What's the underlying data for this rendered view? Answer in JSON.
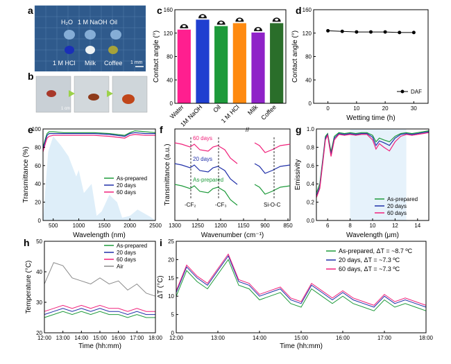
{
  "panels": {
    "a": {
      "letter": "a",
      "row1": [
        "H₂O",
        "1 M NaOH",
        "Oil"
      ],
      "row2": [
        "1 M HCl",
        "Milk",
        "Coffee"
      ],
      "scale": "1 mm",
      "colors": {
        "bg": "#2f5a8c",
        "drop_blue": "#1a2fb8",
        "drop_milk": "#eef2f4",
        "drop_coffee": "#a6a23a"
      }
    },
    "b": {
      "letter": "b",
      "scale": "1 cm"
    }
  },
  "chart_data": [
    {
      "id": "c",
      "type": "bar",
      "categories": [
        "Water",
        "1M NaOH",
        "Oil",
        "1 M HCl",
        "Milk",
        "Coffee"
      ],
      "values": [
        126,
        143,
        132,
        137,
        121,
        137
      ],
      "colors": [
        "#ff1f8f",
        "#1f3fd0",
        "#1d9a3a",
        "#ff8a10",
        "#8f22c8",
        "#2a6e2a"
      ],
      "ylabel": "Contact angle (°)",
      "ylim": [
        0,
        160
      ],
      "yticks": [
        "0",
        "40",
        "80",
        "120",
        "160"
      ]
    },
    {
      "id": "d",
      "type": "line",
      "x": [
        0,
        5,
        10,
        15,
        20,
        25,
        30
      ],
      "y": [
        124,
        123,
        122,
        122,
        122,
        121,
        121
      ],
      "series_name": "DAF",
      "xlabel": "Wetting time (h)",
      "ylabel": "Contact angle (°)",
      "xlim": [
        -5,
        35
      ],
      "ylim": [
        0,
        160
      ],
      "xticks": [
        "0",
        "10",
        "20",
        "30"
      ],
      "yticks": [
        "0",
        "40",
        "80",
        "120",
        "160"
      ]
    },
    {
      "id": "e",
      "type": "line",
      "xlabel": "Wavelength (nm)",
      "ylabel": "Transmittance (%)",
      "xlim": [
        300,
        2500
      ],
      "ylim": [
        0,
        100
      ],
      "xticks": [
        "500",
        "1000",
        "1500",
        "2000",
        "2500"
      ],
      "yticks": [
        "0",
        "20",
        "40",
        "60",
        "80",
        "100"
      ],
      "series": [
        {
          "name": "As-prepared",
          "color": "#1d9a3a",
          "x": [
            300,
            350,
            380,
            420,
            500,
            700,
            1000,
            1300,
            1600,
            1900,
            2000,
            2100,
            2300,
            2500
          ],
          "y": [
            80,
            90,
            95,
            97,
            97,
            96,
            96,
            96,
            95,
            93,
            96,
            98,
            97,
            96
          ]
        },
        {
          "name": "20 days",
          "color": "#1f2fa8",
          "x": [
            300,
            350,
            380,
            420,
            500,
            700,
            1000,
            1300,
            1600,
            1900,
            2000,
            2100,
            2300,
            2500
          ],
          "y": [
            78,
            88,
            93,
            95,
            95,
            95,
            95,
            95,
            94,
            92,
            95,
            96,
            95,
            95
          ]
        },
        {
          "name": "60 days",
          "color": "#f0207a",
          "x": [
            300,
            350,
            380,
            420,
            500,
            700,
            1000,
            1300,
            1600,
            1900,
            2000,
            2100,
            2300,
            2500
          ],
          "y": [
            75,
            85,
            90,
            92,
            93,
            93,
            93,
            93,
            92,
            90,
            93,
            94,
            93,
            93
          ]
        }
      ]
    },
    {
      "id": "f",
      "type": "line",
      "xlabel": "Wavenumber (cm⁻¹)",
      "ylabel": "Transmittance (a.u.)",
      "xticks": [
        "1300",
        "1250",
        "1200",
        "1150",
        "900",
        "850"
      ],
      "annotations": [
        "-CF₂",
        "-CF₃",
        "Si-O-C"
      ],
      "series": [
        {
          "name": "60 days",
          "color": "#f0207a"
        },
        {
          "name": "20 days",
          "color": "#1f2fa8"
        },
        {
          "name": "As-prepared",
          "color": "#1d9a3a"
        }
      ]
    },
    {
      "id": "g",
      "type": "line",
      "xlabel": "Wavelength (μm)",
      "ylabel": "Emissivity",
      "xlim": [
        5,
        15
      ],
      "ylim": [
        0,
        1.0
      ],
      "xticks": [
        "6",
        "8",
        "10",
        "12",
        "14"
      ],
      "yticks": [
        "0.0",
        "0.2",
        "0.4",
        "0.6",
        "0.8",
        "1.0"
      ],
      "series": [
        {
          "name": "As-prepared",
          "color": "#1d9a3a",
          "x": [
            5,
            5.3,
            5.6,
            5.8,
            6.0,
            6.3,
            6.6,
            7,
            7.5,
            8,
            8.5,
            9,
            9.5,
            10,
            10.3,
            10.6,
            11,
            11.5,
            12,
            12.5,
            13,
            13.5,
            14,
            14.5,
            15
          ],
          "y": [
            0.3,
            0.4,
            0.7,
            0.92,
            0.95,
            0.75,
            0.92,
            0.96,
            0.95,
            0.96,
            0.95,
            0.96,
            0.96,
            0.93,
            0.86,
            0.9,
            0.88,
            0.86,
            0.92,
            0.95,
            0.96,
            0.95,
            0.96,
            0.97,
            0.98
          ]
        },
        {
          "name": "20 days",
          "color": "#1f2fa8",
          "x": [
            5,
            5.3,
            5.6,
            5.8,
            6.0,
            6.3,
            6.6,
            7,
            7.5,
            8,
            8.5,
            9,
            9.5,
            10,
            10.3,
            10.6,
            11,
            11.5,
            12,
            12.5,
            13,
            13.5,
            14,
            14.5,
            15
          ],
          "y": [
            0.27,
            0.37,
            0.68,
            0.9,
            0.94,
            0.72,
            0.9,
            0.95,
            0.94,
            0.95,
            0.94,
            0.95,
            0.95,
            0.91,
            0.82,
            0.87,
            0.85,
            0.82,
            0.9,
            0.94,
            0.95,
            0.94,
            0.95,
            0.96,
            0.97
          ]
        },
        {
          "name": "60 days",
          "color": "#f0207a",
          "x": [
            5,
            5.3,
            5.6,
            5.8,
            6.0,
            6.3,
            6.6,
            7,
            7.5,
            8,
            8.5,
            9,
            9.5,
            10,
            10.3,
            10.6,
            11,
            11.5,
            12,
            12.5,
            13,
            13.5,
            14,
            14.5,
            15
          ],
          "y": [
            0.25,
            0.35,
            0.66,
            0.88,
            0.93,
            0.7,
            0.88,
            0.94,
            0.93,
            0.94,
            0.93,
            0.94,
            0.94,
            0.88,
            0.78,
            0.84,
            0.8,
            0.76,
            0.86,
            0.92,
            0.94,
            0.93,
            0.94,
            0.95,
            0.96
          ]
        }
      ]
    },
    {
      "id": "h",
      "type": "line",
      "xlabel": "Time (hh:mm)",
      "ylabel": "Temperature (°C)",
      "xlim": [
        0,
        6
      ],
      "ylim": [
        20,
        50
      ],
      "xticks": [
        "12:00",
        "13:00",
        "14:00",
        "15:00",
        "16:00",
        "17:00",
        "18:00"
      ],
      "yticks": [
        "20",
        "30",
        "40",
        "50"
      ],
      "series": [
        {
          "name": "As-prepared",
          "color": "#1d9a3a",
          "x": [
            0,
            0.5,
            1,
            1.5,
            2,
            2.5,
            3,
            3.5,
            4,
            4.5,
            5,
            5.5,
            6
          ],
          "y": [
            25,
            26,
            27,
            26,
            27,
            26,
            27,
            26,
            26,
            25,
            26,
            25,
            25
          ]
        },
        {
          "name": "20 days",
          "color": "#1f2fa8",
          "x": [
            0,
            0.5,
            1,
            1.5,
            2,
            2.5,
            3,
            3.5,
            4,
            4.5,
            5,
            5.5,
            6
          ],
          "y": [
            26,
            27,
            28,
            27,
            28,
            27,
            28,
            27,
            27,
            26,
            27,
            26,
            26
          ]
        },
        {
          "name": "60 days",
          "color": "#f0207a",
          "x": [
            0,
            0.5,
            1,
            1.5,
            2,
            2.5,
            3,
            3.5,
            4,
            4.5,
            5,
            5.5,
            6
          ],
          "y": [
            27,
            28,
            29,
            28,
            29,
            28,
            29,
            28,
            28,
            27,
            28,
            27,
            27
          ]
        },
        {
          "name": "Air",
          "color": "#8a8a8a",
          "x": [
            0,
            0.5,
            1,
            1.5,
            2,
            2.5,
            3,
            3.5,
            4,
            4.5,
            5,
            5.5,
            6
          ],
          "y": [
            36,
            43,
            42,
            38,
            37,
            36,
            38,
            36,
            37,
            34,
            36,
            33,
            32
          ]
        }
      ]
    },
    {
      "id": "i",
      "type": "line",
      "xlabel": "Time (hh:mm)",
      "ylabel": "ΔT (°C)",
      "xlim": [
        0,
        6
      ],
      "ylim": [
        0,
        25
      ],
      "xticks": [
        "12:00",
        "13:00",
        "14:00",
        "15:00",
        "16:00",
        "17:00",
        "18:00"
      ],
      "yticks": [
        "0",
        "5",
        "10",
        "15",
        "20",
        "25"
      ],
      "series": [
        {
          "name": "As-prepared, ΔT = ~8.7 ºC",
          "color": "#1d9a3a",
          "x": [
            0,
            0.25,
            0.5,
            0.75,
            1,
            1.25,
            1.5,
            1.75,
            2,
            2.25,
            2.5,
            2.75,
            3,
            3.25,
            3.5,
            3.75,
            4,
            4.25,
            4.5,
            4.75,
            5,
            5.25,
            5.5,
            5.75,
            6
          ],
          "y": [
            10,
            17,
            14,
            12,
            16,
            20,
            13,
            12,
            9,
            10,
            11,
            8,
            7,
            12,
            10,
            8,
            10,
            8,
            7,
            6,
            9,
            7,
            8,
            7,
            6
          ]
        },
        {
          "name": "20 days, ΔT = ~7.3 ºC",
          "color": "#1f2fa8",
          "x": [
            0,
            0.25,
            0.5,
            0.75,
            1,
            1.25,
            1.5,
            1.75,
            2,
            2.25,
            2.5,
            2.75,
            3,
            3.25,
            3.5,
            3.75,
            4,
            4.25,
            4.5,
            4.75,
            5,
            5.25,
            5.5,
            5.75,
            6
          ],
          "y": [
            11,
            18,
            15,
            13,
            17,
            21,
            14,
            13,
            10,
            11,
            12,
            9,
            8,
            13,
            11,
            9,
            11,
            9,
            8,
            7,
            10,
            8,
            9,
            8,
            7
          ]
        },
        {
          "name": "60 days, ΔT = ~7.3 ºC",
          "color": "#f0207a",
          "x": [
            0,
            0.25,
            0.5,
            0.75,
            1,
            1.25,
            1.5,
            1.75,
            2,
            2.25,
            2.5,
            2.75,
            3,
            3.25,
            3.5,
            3.75,
            4,
            4.25,
            4.5,
            4.75,
            5,
            5.25,
            5.5,
            5.75,
            6
          ],
          "y": [
            11.5,
            18.5,
            15.5,
            13.5,
            17.5,
            21.5,
            14.5,
            13.5,
            10.5,
            11.5,
            12.5,
            9.5,
            8.5,
            13.5,
            11.5,
            9.5,
            11.5,
            9.5,
            8.5,
            7.5,
            10.5,
            8.5,
            9.5,
            8.5,
            7.5
          ]
        }
      ]
    }
  ]
}
